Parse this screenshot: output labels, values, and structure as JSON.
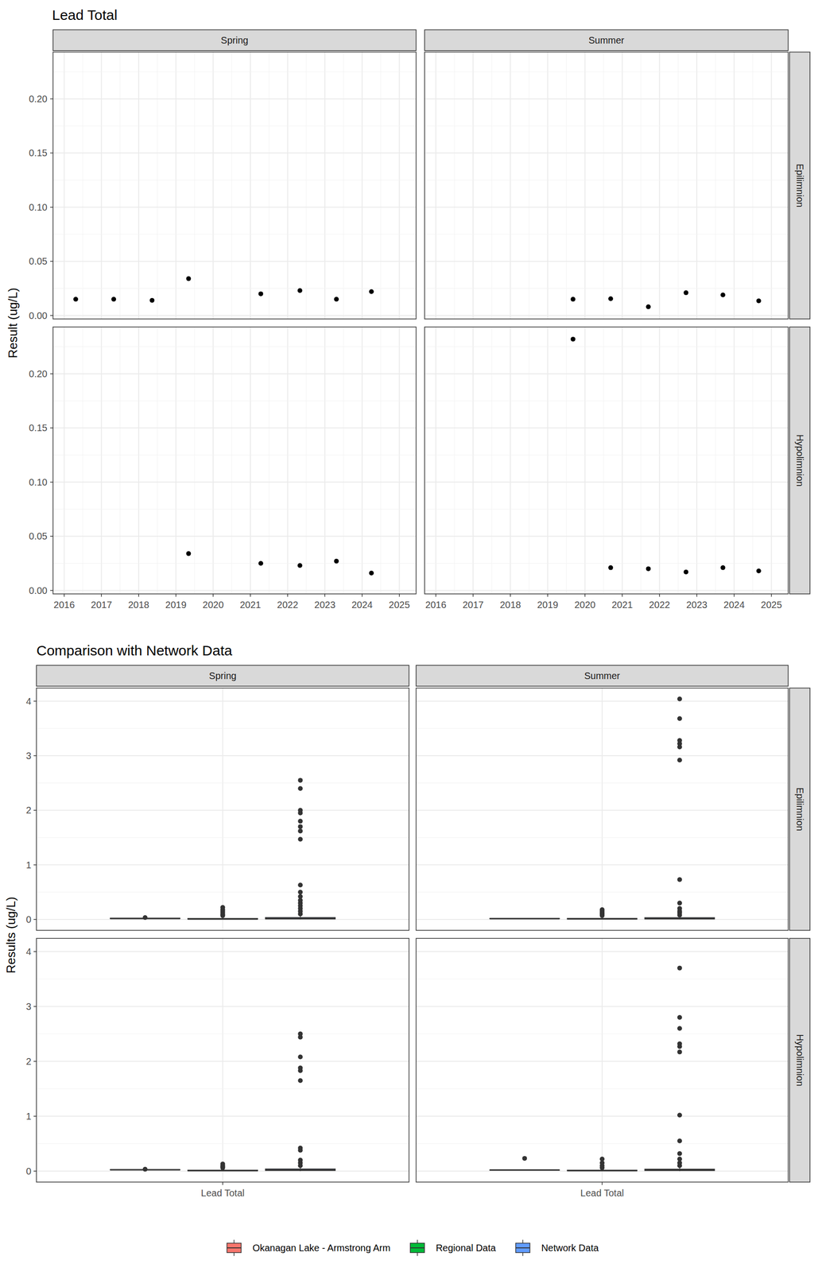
{
  "chart_data": [
    {
      "type": "scatter",
      "title": "Lead Total",
      "y_label": "Result (ug/L)",
      "columns": [
        "Spring",
        "Summer"
      ],
      "rows": [
        "Epilimnion",
        "Hypolimnion"
      ],
      "xlim": [
        2015.7,
        2025.45
      ],
      "xticks": [
        2016,
        2017,
        2018,
        2019,
        2020,
        2021,
        2022,
        2023,
        2024,
        2025
      ],
      "ylim": [
        -0.0032,
        0.2432
      ],
      "yticks": [
        {
          "value": 0,
          "label": "0.00"
        },
        {
          "value": 0.05,
          "label": "0.05"
        },
        {
          "value": 0.1,
          "label": "0.10"
        },
        {
          "value": 0.15,
          "label": "0.15"
        },
        {
          "value": 0.2,
          "label": "0.20"
        }
      ],
      "grid": true,
      "color": "#000000",
      "marker": "circle",
      "facets": [
        [
          {
            "x": [
              2016.31,
              2017.33,
              2018.36,
              2019.34,
              2021.28,
              2022.33,
              2023.31,
              2024.25
            ],
            "values": [
              0.015,
              0.015,
              0.014,
              0.034,
              0.02,
              0.023,
              0.015,
              0.022
            ]
          },
          {
            "x": [
              2019.68,
              2020.69,
              2021.7,
              2022.71,
              2023.7,
              2024.66
            ],
            "values": [
              0.015,
              0.0155,
              0.008,
              0.021,
              0.019,
              0.0135
            ]
          }
        ],
        [
          {
            "x": [
              2019.34,
              2021.28,
              2022.33,
              2023.31,
              2024.25
            ],
            "values": [
              0.034,
              0.025,
              0.023,
              0.027,
              0.016
            ]
          },
          {
            "x": [
              2019.68,
              2020.69,
              2021.7,
              2022.71,
              2023.7,
              2024.66
            ],
            "values": [
              0.232,
              0.021,
              0.02,
              0.017,
              0.021,
              0.018
            ]
          }
        ]
      ]
    },
    {
      "type": "box",
      "title": "Comparison with Network Data",
      "y_label": "Results (ug/L)",
      "columns": [
        "Spring",
        "Summer"
      ],
      "rows": [
        "Epilimnion",
        "Hypolimnion"
      ],
      "categories": [
        "Lead Total"
      ],
      "ylim": [
        -0.2,
        4.24
      ],
      "yticks": [
        0,
        1,
        2,
        3,
        4
      ],
      "grid": true,
      "legend": "bottom",
      "series": [
        {
          "name": "Okanagan Lake - Armstrong Arm",
          "color": "#F8766D"
        },
        {
          "name": "Regional Data",
          "color": "#00BA38"
        },
        {
          "name": "Network Data",
          "color": "#619CFF"
        }
      ],
      "facets": [
        [
          {
            "boxes": [
              {
                "min": 0.014,
                "q1": 0.015,
                "median": 0.0175,
                "q3": 0.0223,
                "max": 0.023,
                "outliers": [
                  0.034
                ]
              },
              {
                "min": 0,
                "q1": 0.004,
                "median": 0.009,
                "q3": 0.018,
                "max": 0.038,
                "outliers": [
                  0.07,
                  0.09,
                  0.12,
                  0.15,
                  0.18,
                  0.22
                ]
              },
              {
                "min": 0,
                "q1": 0.008,
                "median": 0.018,
                "q3": 0.035,
                "max": 0.075,
                "outliers": [
                  0.1,
                  0.15,
                  0.2,
                  0.25,
                  0.3,
                  0.35,
                  0.42,
                  0.5,
                  0.63,
                  1.47,
                  1.62,
                  1.7,
                  1.8,
                  1.95,
                  2.0,
                  2.4,
                  2.55
                ]
              }
            ]
          },
          {
            "boxes": [
              {
                "min": 0.008,
                "q1": 0.0139,
                "median": 0.01525,
                "q3": 0.0181,
                "max": 0.021,
                "outliers": []
              },
              {
                "min": 0,
                "q1": 0.005,
                "median": 0.01,
                "q3": 0.02,
                "max": 0.045,
                "outliers": [
                  0.07,
                  0.1,
                  0.12,
                  0.15,
                  0.18
                ]
              },
              {
                "min": 0,
                "q1": 0.008,
                "median": 0.017,
                "q3": 0.033,
                "max": 0.07,
                "outliers": [
                  0.08,
                  0.12,
                  0.15,
                  0.2,
                  0.3,
                  0.73,
                  2.92,
                  3.16,
                  3.22,
                  3.28,
                  3.68,
                  4.04
                ]
              }
            ]
          }
        ],
        [
          {
            "boxes": [
              {
                "min": 0.016,
                "q1": 0.023,
                "median": 0.025,
                "q3": 0.027,
                "max": 0.027,
                "outliers": [
                  0.034
                ]
              },
              {
                "min": 0,
                "q1": 0.004,
                "median": 0.009,
                "q3": 0.018,
                "max": 0.04,
                "outliers": [
                  0.06,
                  0.08,
                  0.1,
                  0.13
                ]
              },
              {
                "min": 0,
                "q1": 0.01,
                "median": 0.02,
                "q3": 0.04,
                "max": 0.08,
                "outliers": [
                  0.1,
                  0.15,
                  0.2,
                  0.38,
                  0.42,
                  1.65,
                  1.83,
                  1.88,
                  2.08,
                  2.44,
                  2.5
                ]
              }
            ]
          },
          {
            "boxes": [
              {
                "min": 0.017,
                "q1": 0.0185,
                "median": 0.0205,
                "q3": 0.021,
                "max": 0.021,
                "outliers": [
                  0.232
                ]
              },
              {
                "min": 0,
                "q1": 0.004,
                "median": 0.008,
                "q3": 0.018,
                "max": 0.04,
                "outliers": [
                  0.06,
                  0.1,
                  0.15,
                  0.22
                ]
              },
              {
                "min": 0,
                "q1": 0.009,
                "median": 0.019,
                "q3": 0.037,
                "max": 0.078,
                "outliers": [
                  0.1,
                  0.15,
                  0.22,
                  0.32,
                  0.55,
                  1.02,
                  2.17,
                  2.27,
                  2.32,
                  2.6,
                  2.8,
                  3.7
                ]
              }
            ]
          }
        ]
      ]
    }
  ]
}
